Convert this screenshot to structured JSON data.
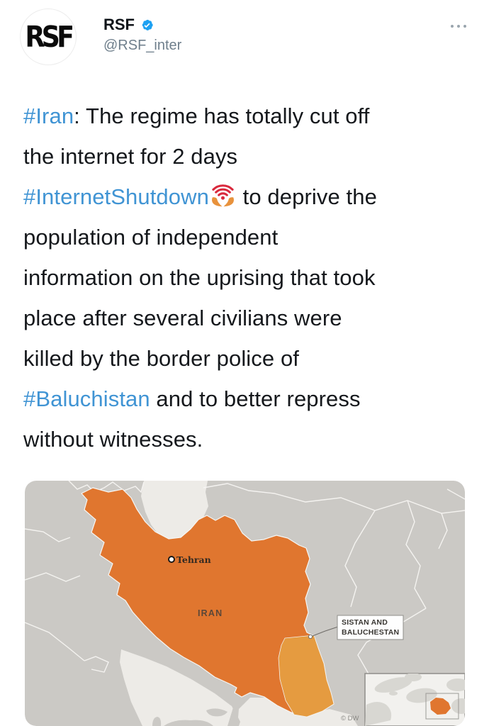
{
  "header": {
    "avatar_logo": "RSF",
    "display_name": "RSF",
    "handle": "@RSF_inter"
  },
  "tweet": {
    "text_color": "#15181c",
    "hashtag_color": "#4094d4",
    "lines": [
      {
        "segments": [
          {
            "type": "hashtag",
            "text": "#Iran"
          },
          {
            "type": "text",
            "text": ": The regime has totally cut off"
          }
        ]
      },
      {
        "segments": [
          {
            "type": "text",
            "text": "the internet for 2 days"
          }
        ]
      },
      {
        "segments": [
          {
            "type": "hashtag",
            "text": "#InternetShutdown"
          },
          {
            "type": "emoji",
            "text": "wifi-in-hands"
          },
          {
            "type": "text",
            "text": " to deprive the"
          }
        ]
      },
      {
        "segments": [
          {
            "type": "text",
            "text": "population of independent"
          }
        ]
      },
      {
        "segments": [
          {
            "type": "text",
            "text": "information on the uprising that took"
          }
        ]
      },
      {
        "segments": [
          {
            "type": "text",
            "text": "place after several civilians were"
          }
        ]
      },
      {
        "segments": [
          {
            "type": "text",
            "text": "killed by the border police of"
          }
        ]
      },
      {
        "segments": [
          {
            "type": "hashtag",
            "text": "#Baluchistan"
          },
          {
            "type": "text",
            "text": " and to better repress"
          }
        ]
      },
      {
        "segments": [
          {
            "type": "text",
            "text": "without witnesses."
          }
        ]
      }
    ]
  },
  "map": {
    "labels": {
      "capital": "Tehran",
      "country": "IRAN",
      "region_line1": "SISTAN AND",
      "region_line2": "BALUCHESTAN",
      "credit": "© DW"
    },
    "colors": {
      "neighbor_land": "#cbc9c5",
      "sea": "#edebe7",
      "iran": "#e0762f",
      "region_highlight": "#e59b40",
      "border_line": "#f7f6f3",
      "verified_blue": "#1da1f2"
    }
  }
}
